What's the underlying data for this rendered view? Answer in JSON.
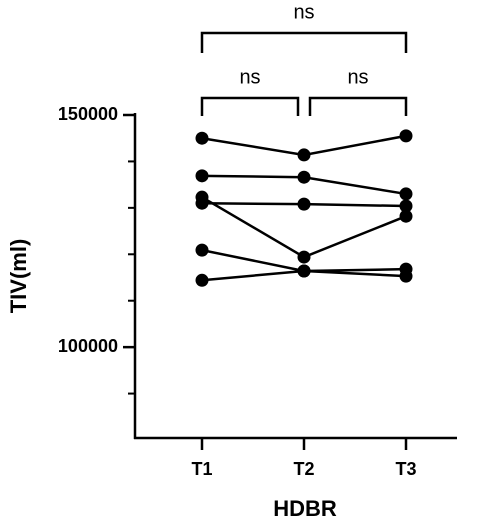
{
  "chart_data": {
    "type": "line",
    "xlabel": "HDBR",
    "ylabel": "TIV(ml)",
    "categories": [
      "T1",
      "T2",
      "T3"
    ],
    "series": [
      {
        "color": "#000000",
        "values": [
          145000,
          141400,
          145500
        ]
      },
      {
        "color": "#000000",
        "values": [
          136900,
          136600,
          133000
        ]
      },
      {
        "color": "#000000",
        "values": [
          131000,
          130800,
          130400
        ]
      },
      {
        "color": "#000000",
        "values": [
          132300,
          119400,
          128200
        ]
      },
      {
        "color": "#000000",
        "values": [
          120900,
          116400,
          115300
        ]
      },
      {
        "color": "#000000",
        "values": [
          114400,
          116400,
          116800
        ]
      }
    ],
    "ylim": [
      80000,
      150000
    ],
    "yticks": [
      100000,
      150000
    ],
    "yminorticks": [
      90000,
      110000,
      120000,
      130000,
      140000
    ],
    "comparisons": [
      {
        "pair": [
          "T1",
          "T3"
        ],
        "label": "ns"
      },
      {
        "pair": [
          "T1",
          "T2"
        ],
        "label": "ns"
      },
      {
        "pair": [
          "T2",
          "T3"
        ],
        "label": "ns"
      }
    ]
  }
}
